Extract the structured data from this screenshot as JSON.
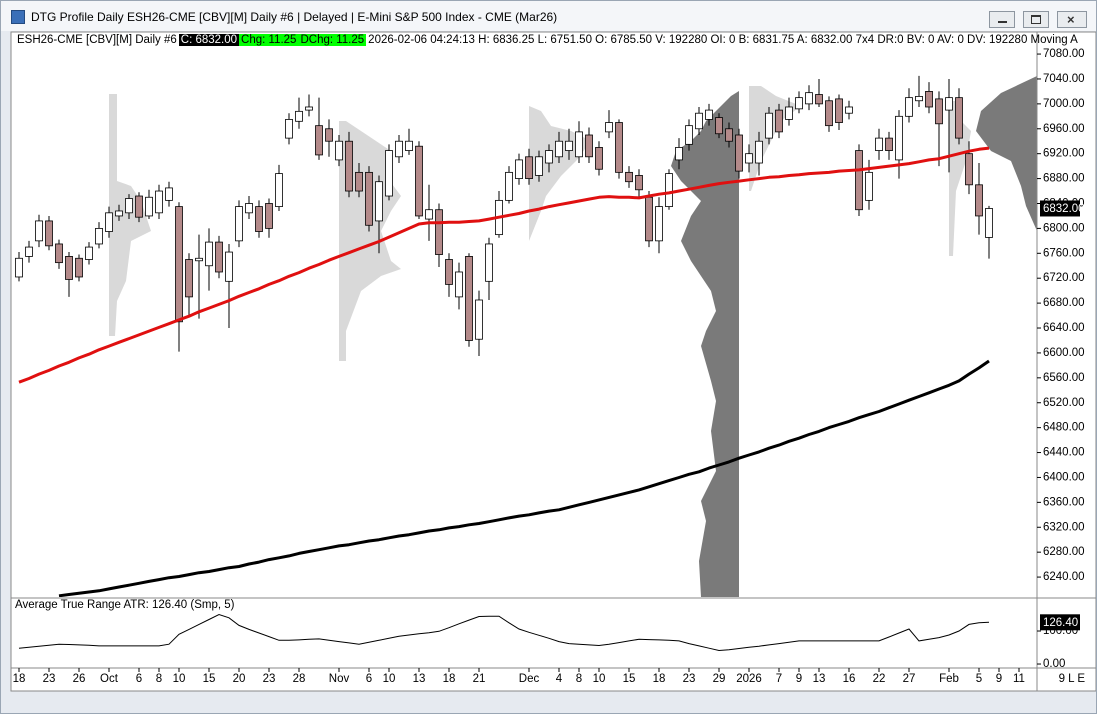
{
  "window": {
    "title": "DTG Profile Daily ESH26-CME [CBV][M]  Daily #6 | Delayed | E-Mini S&P 500 Index - CME (Mar26)",
    "info": [
      "ESH26-CME [CBV][M]  Daily #6",
      "C: 6832.00",
      "Chg: 11.25",
      "DChg: 11.25",
      "2026-02-06 04:24:13 H: 6836.25 L: 6751.50 O: 6785.50 V: 192280 OI: 0 B: 6831.75 A: 6832.00 7x4 DR:0 BV: 0 AV: 0 DV: 192280 Moving A"
    ],
    "corner": "9 L E"
  },
  "chart_data": [
    {
      "type": "candlestick",
      "categories": [
        "18",
        null,
        null,
        "23",
        null,
        null,
        "26",
        null,
        null,
        "Oct",
        null,
        null,
        "6",
        null,
        "8",
        null,
        "10",
        null,
        null,
        "15",
        null,
        null,
        "20",
        null,
        null,
        "23",
        null,
        null,
        "28",
        null,
        null,
        null,
        "Nov",
        null,
        null,
        "6",
        null,
        "10",
        null,
        null,
        "13",
        null,
        null,
        "18",
        null,
        null,
        "21",
        null,
        null,
        null,
        null,
        "Dec",
        null,
        null,
        "4",
        null,
        "8",
        null,
        "10",
        null,
        null,
        "15",
        null,
        null,
        "18",
        null,
        null,
        "23",
        null,
        null,
        "29",
        null,
        null,
        "2026",
        null,
        null,
        "7",
        null,
        "9",
        null,
        "13",
        null,
        null,
        "16",
        null,
        null,
        "22",
        null,
        null,
        "27",
        null,
        null,
        null,
        "Feb",
        null,
        null,
        "5",
        null,
        "9",
        null,
        "11"
      ],
      "open": [
        6722,
        6755,
        6780,
        6812,
        6775,
        6755,
        6752,
        6750,
        6775,
        6795,
        6820,
        6825,
        6852,
        6820,
        6825,
        6845,
        6835,
        6750,
        6748,
        6740,
        6778,
        6715,
        6780,
        6825,
        6835,
        6840,
        6835,
        6945,
        6972,
        6990,
        6965,
        6960,
        6910,
        6940,
        6890,
        6890,
        6812,
        6852,
        6915,
        6925,
        6932,
        6815,
        6830,
        6750,
        6690,
        6755,
        6622,
        6715,
        6790,
        6845,
        6880,
        6915,
        6885,
        6905,
        6915,
        6925,
        6915,
        6950,
        6930,
        6955,
        6970,
        6890,
        6885,
        6850,
        6780,
        6835,
        6910,
        6935,
        6960,
        6975,
        6978,
        6960,
        6950,
        6905,
        6905,
        6945,
        6990,
        6975,
        6992,
        7000,
        7015,
        7005,
        7008,
        6985,
        6925,
        6845,
        6925,
        6945,
        6910,
        6980,
        7005,
        7020,
        7008,
        6990,
        7010,
        6920,
        6870,
        6785.5,
        null,
        null,
        null
      ],
      "high": [
        6762,
        6780,
        6822,
        6820,
        6782,
        6762,
        6758,
        6778,
        6810,
        6835,
        6838,
        6855,
        6858,
        6862,
        6870,
        6875,
        6842,
        6760,
        6790,
        6800,
        6788,
        6775,
        6845,
        6852,
        6845,
        6848,
        6902,
        6985,
        7010,
        7015,
        7010,
        6975,
        6950,
        6955,
        6905,
        6900,
        6885,
        6935,
        6950,
        6960,
        6940,
        6870,
        6840,
        6760,
        6745,
        6760,
        6700,
        6785,
        6860,
        6900,
        6920,
        6928,
        6925,
        6935,
        6955,
        6960,
        6972,
        6962,
        6940,
        6990,
        6975,
        6900,
        6895,
        6860,
        6850,
        6895,
        6945,
        6975,
        6995,
        7000,
        6985,
        6970,
        6960,
        6935,
        6955,
        6995,
        7000,
        7010,
        7020,
        7030,
        7040,
        7012,
        7015,
        7005,
        6935,
        6910,
        6960,
        6955,
        6990,
        7025,
        7045,
        7035,
        7020,
        7040,
        7025,
        6940,
        6905,
        6836.25,
        null,
        null,
        null
      ],
      "low": [
        6715,
        6745,
        6770,
        6765,
        6735,
        6690,
        6715,
        6742,
        6768,
        6785,
        6812,
        6815,
        6810,
        6815,
        6815,
        6835,
        6602,
        6660,
        6655,
        6700,
        6720,
        6640,
        6770,
        6815,
        6785,
        6785,
        6828,
        6935,
        6960,
        6980,
        6910,
        6915,
        6900,
        6850,
        6850,
        6795,
        6760,
        6845,
        6905,
        6918,
        6815,
        6780,
        6738,
        6690,
        6670,
        6610,
        6595,
        6685,
        6785,
        6840,
        6870,
        6870,
        6875,
        6890,
        6905,
        6910,
        6905,
        6905,
        6885,
        6945,
        6880,
        6865,
        6850,
        6770,
        6760,
        6830,
        6895,
        6925,
        6950,
        6965,
        6945,
        6930,
        6880,
        6890,
        6885,
        6935,
        6945,
        6965,
        6985,
        6990,
        6995,
        6955,
        6958,
        6975,
        6820,
        6830,
        6910,
        6910,
        6880,
        6970,
        6995,
        6985,
        6900,
        6890,
        6935,
        6855,
        6790,
        6751.5,
        null,
        null,
        null
      ],
      "close": [
        6752,
        6770,
        6812,
        6772,
        6745,
        6718,
        6722,
        6770,
        6800,
        6825,
        6828,
        6848,
        6818,
        6850,
        6860,
        6865,
        6650,
        6690,
        6752,
        6778,
        6730,
        6762,
        6835,
        6840,
        6795,
        6800,
        6888,
        6975,
        6988,
        6995,
        6918,
        6940,
        6940,
        6860,
        6860,
        6805,
        6875,
        6925,
        6940,
        6940,
        6820,
        6830,
        6758,
        6710,
        6730,
        6620,
        6685,
        6775,
        6845,
        6890,
        6910,
        6880,
        6915,
        6925,
        6940,
        6940,
        6955,
        6915,
        6895,
        6970,
        6890,
        6875,
        6862,
        6780,
        6835,
        6888,
        6930,
        6965,
        6985,
        6990,
        6952,
        6940,
        6892,
        6920,
        6940,
        6985,
        6955,
        6995,
        7010,
        7018,
        7000,
        6965,
        6970,
        6995,
        6830,
        6890,
        6945,
        6925,
        6980,
        7010,
        7012,
        6995,
        6968,
        7010,
        6945,
        6870,
        6820,
        6832,
        null,
        null,
        null
      ],
      "up_color": "#ffffff",
      "down_color": "#b48a8a",
      "overlays": [
        {
          "color": "#e01010",
          "values": [
            6553,
            6559,
            6566,
            6572,
            6579,
            6585,
            6592,
            6598,
            6605,
            6611,
            6617,
            6623,
            6629,
            6635,
            6641,
            6647,
            6653,
            6659,
            6666,
            6672,
            6678,
            6684,
            6691,
            6697,
            6703,
            6710,
            6716,
            6723,
            6729,
            6736,
            6742,
            6749,
            6755,
            6761,
            6767,
            6773,
            6779,
            6786,
            6793,
            6800,
            6807,
            6809,
            6809,
            6810,
            6810,
            6811,
            6812,
            6815,
            6818,
            6821,
            6824,
            6828,
            6831,
            6835,
            6838,
            6841,
            6844,
            6847,
            6850,
            6851,
            6850,
            6850,
            6849,
            6852,
            6855,
            6857,
            6860,
            6863,
            6866,
            6869,
            6872,
            6874,
            6876,
            6878,
            6880,
            6882,
            6883,
            6885,
            6886,
            6888,
            6889,
            6890,
            6892,
            6893,
            6894,
            6896,
            6898,
            6900,
            6902,
            6904,
            6907,
            6910,
            6912,
            6916,
            6920,
            6924,
            6927,
            6929,
            null,
            null,
            null
          ]
        },
        {
          "color": "#000000",
          "values": [
            null,
            null,
            null,
            null,
            6210,
            6212,
            6214,
            6216,
            6218,
            6221,
            6224,
            6227,
            6230,
            6233,
            6236,
            6239,
            6241,
            6244,
            6247,
            6249,
            6252,
            6255,
            6257,
            6261,
            6264,
            6268,
            6271,
            6274,
            6278,
            6281,
            6284,
            6287,
            6290,
            6292,
            6295,
            6298,
            6300,
            6303,
            6306,
            6308,
            6311,
            6314,
            6316,
            6319,
            6321,
            6324,
            6326,
            6329,
            6332,
            6335,
            6338,
            6340,
            6343,
            6346,
            6348,
            6352,
            6356,
            6360,
            6364,
            6368,
            6372,
            6376,
            6380,
            6385,
            6390,
            6395,
            6400,
            6405,
            6409,
            6415,
            6420,
            6425,
            6431,
            6436,
            6441,
            6447,
            6452,
            6458,
            6463,
            6469,
            6474,
            6480,
            6485,
            6490,
            6496,
            6501,
            6506,
            6512,
            6518,
            6524,
            6530,
            6536,
            6542,
            6548,
            6555,
            6566,
            6576,
            6587,
            null,
            null,
            null
          ]
        }
      ],
      "ylim": [
        6208,
        7109
      ],
      "yticks": [
        {
          "value": 7080,
          "label": "7080.00"
        },
        {
          "value": 7040,
          "label": "7040.00"
        },
        {
          "value": 7000,
          "label": "7000.00"
        },
        {
          "value": 6960,
          "label": "6960.00"
        },
        {
          "value": 6920,
          "label": "6920.00"
        },
        {
          "value": 6880,
          "label": "6880.00"
        },
        {
          "value": 6840,
          "label": "6840.00"
        },
        {
          "value": 6800,
          "label": "6800.00"
        },
        {
          "value": 6760,
          "label": "6760.00"
        },
        {
          "value": 6720,
          "label": "6720.00"
        },
        {
          "value": 6680,
          "label": "6680.00"
        },
        {
          "value": 6640,
          "label": "6640.00"
        },
        {
          "value": 6600,
          "label": "6600.00"
        },
        {
          "value": 6560,
          "label": "6560.00"
        },
        {
          "value": 6520,
          "label": "6520.00"
        },
        {
          "value": 6480,
          "label": "6480.00"
        },
        {
          "value": 6440,
          "label": "6440.00"
        },
        {
          "value": 6400,
          "label": "6400.00"
        },
        {
          "value": 6360,
          "label": "6360.00"
        },
        {
          "value": 6320,
          "label": "6320.00"
        },
        {
          "value": 6280,
          "label": "6280.00"
        },
        {
          "value": 6240,
          "label": "6240.00"
        }
      ],
      "price_marker": {
        "value": 6832,
        "label": "6832.00"
      }
    },
    {
      "type": "line",
      "title": "Average True Range  ATR: 126.40  (Smp, 5)",
      "color": "#000000",
      "values": [
        48,
        51,
        54,
        57,
        60,
        59,
        58,
        57,
        55,
        55,
        55,
        55,
        55,
        55,
        55,
        60,
        90,
        105,
        120,
        135,
        150,
        140,
        117,
        105,
        94,
        83,
        72,
        72,
        73,
        75,
        76,
        72,
        68,
        64,
        60,
        66,
        72,
        78,
        84,
        88,
        92,
        95,
        99,
        110,
        122,
        133,
        144,
        145,
        145,
        125,
        106,
        96,
        87,
        78,
        68,
        62,
        60,
        58,
        56,
        60,
        65,
        70,
        75,
        74,
        73,
        72,
        70,
        62,
        55,
        48,
        41,
        43,
        47,
        51,
        54,
        58,
        62,
        66,
        70,
        70,
        70,
        70,
        70,
        70,
        70,
        70,
        70,
        82,
        94,
        106,
        70,
        75,
        80,
        88,
        100,
        120,
        125,
        126.4,
        null,
        null,
        null
      ],
      "ylim": [
        -6,
        197
      ],
      "yticks": [
        {
          "value": 100,
          "label": "100.00"
        },
        {
          "value": 0,
          "label": "0.00"
        }
      ],
      "price_marker": {
        "value": 126.4,
        "label": "126.40"
      }
    }
  ]
}
